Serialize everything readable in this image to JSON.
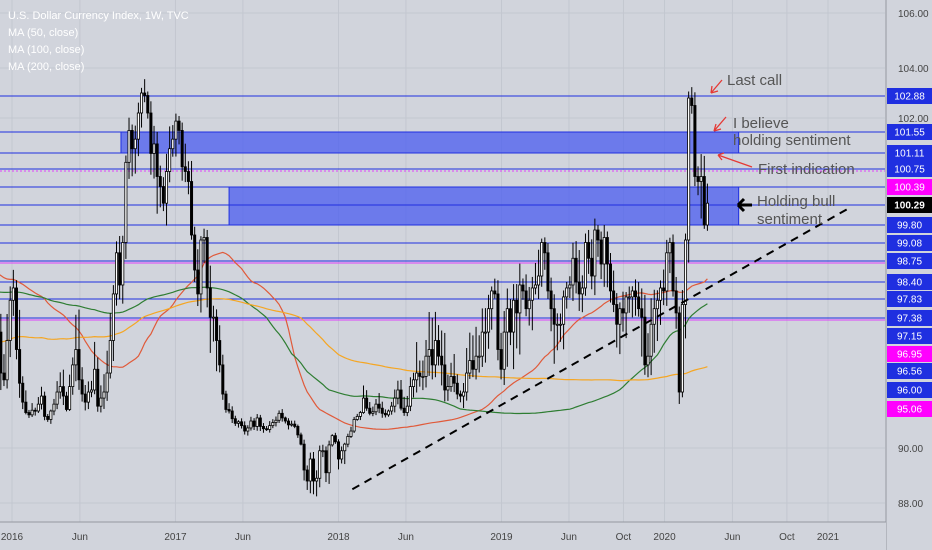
{
  "legend": {
    "symbol": "U.S. Dollar Currency Index, 1W, TVC",
    "ma1": "MA (50, close)",
    "ma2": "MA (100, close)",
    "ma3": "MA (200, close)"
  },
  "colors": {
    "background": "#d1d4dc",
    "zone_fill": "#4a5cf0",
    "level_line": "#1f2fe0",
    "magenta_line": "#e040fb",
    "candle": "#000000",
    "ma50": "#e05a3a",
    "ma100": "#2e7d32",
    "ma200": "#f5a623",
    "annotation_arrow": "#e53935",
    "annotation_text": "#555555",
    "trendline": "#000000",
    "current_price_bg": "#000000",
    "magenta_label_bg": "#ff00ff"
  },
  "chart_data": {
    "type": "candlestick",
    "title": "U.S. Dollar Currency Index, 1W, TVC",
    "x_tick_labels": [
      {
        "label": "2016",
        "date": "2016-01-01"
      },
      {
        "label": "Jun",
        "date": "2016-06-01"
      },
      {
        "label": "2017",
        "date": "2017-01-01"
      },
      {
        "label": "Jun",
        "date": "2017-06-01"
      },
      {
        "label": "2018",
        "date": "2018-01-01"
      },
      {
        "label": "Jun",
        "date": "2018-06-01"
      },
      {
        "label": "2019",
        "date": "2019-01-01"
      },
      {
        "label": "Jun",
        "date": "2019-06-01"
      },
      {
        "label": "Oct",
        "date": "2019-10-01"
      },
      {
        "label": "2020",
        "date": "2020-01-01"
      },
      {
        "label": "Jun",
        "date": "2020-06-01"
      },
      {
        "label": "Oct",
        "date": "2020-10-01"
      },
      {
        "label": "2021",
        "date": "2021-01-01"
      }
    ],
    "y_tick_labels": [
      106.0,
      104.0,
      102.0,
      90.0,
      88.0
    ],
    "price_labels": [
      {
        "text": "102.88",
        "kind": "blue"
      },
      {
        "text": "101.55",
        "kind": "blue"
      },
      {
        "text": "101.11",
        "kind": "blue"
      },
      {
        "text": "100.75",
        "kind": "blue"
      },
      {
        "text": "100.39",
        "kind": "magenta"
      },
      {
        "text": "100.29",
        "kind": "current"
      },
      {
        "text": "99.80",
        "kind": "blue"
      },
      {
        "text": "99.08",
        "kind": "blue"
      },
      {
        "text": "98.75",
        "kind": "blue"
      },
      {
        "text": "98.40",
        "kind": "blue"
      },
      {
        "text": "97.83",
        "kind": "blue"
      },
      {
        "text": "97.38",
        "kind": "blue"
      },
      {
        "text": "97.15",
        "kind": "blue"
      },
      {
        "text": "96.95",
        "kind": "magenta"
      },
      {
        "text": "96.56",
        "kind": "blue"
      },
      {
        "text": "96.00",
        "kind": "blue"
      },
      {
        "text": "95.06",
        "kind": "magenta"
      }
    ],
    "horizontal_levels": [
      102.88,
      101.55,
      101.11,
      100.75,
      100.39,
      100.29,
      99.8,
      99.08,
      98.75,
      98.4,
      97.83,
      97.38
    ],
    "magenta_levels": [
      100.75,
      98.75,
      97.38
    ],
    "zones": [
      {
        "from": "2016-09-01",
        "to": "2020-06-15",
        "low": 101.11,
        "high": 101.55
      },
      {
        "from": "2017-05-01",
        "to": "2020-06-15",
        "low": 99.8,
        "high": 100.39
      }
    ],
    "weekly_closes": [
      98.5,
      98.9,
      99.4,
      98.7,
      97.2,
      96.5,
      96.3,
      97.1,
      97.8,
      98.2,
      97.0,
      96.2,
      95.4,
      94.6,
      94.3,
      94.9,
      94.8,
      95.3,
      95.7,
      94.1,
      93.7,
      94.8,
      95.3,
      95.9,
      96.1,
      95.7,
      95.0,
      96.1,
      96.7,
      97.0,
      96.3,
      95.8,
      95.4,
      95.9,
      96.0,
      96.6,
      95.2,
      95.6,
      95.9,
      96.5,
      97.1,
      98.0,
      98.9,
      98.3,
      99.1,
      100.9,
      101.6,
      101.2,
      101.4,
      102.2,
      103.0,
      102.9,
      102.2,
      101.1,
      101.3,
      100.6,
      100.4,
      100.3,
      100.7,
      101.2,
      101.4,
      101.9,
      101.6,
      100.8,
      100.7,
      100.5,
      99.4,
      98.6,
      98.0,
      99.2,
      99.3,
      98.2,
      97.4,
      97.4,
      97.1,
      96.7,
      95.8,
      95.0,
      94.8,
      93.8,
      93.2,
      93.4,
      92.9,
      92.2,
      92.6,
      93.5,
      92.8,
      93.9,
      92.8,
      92.5,
      92.4,
      92.9,
      93.3,
      93.6,
      94.5,
      93.9,
      93.5,
      93.0,
      93.1,
      92.8,
      91.7,
      90.5,
      89.2,
      88.8,
      89.6,
      88.8,
      88.9,
      89.9,
      89.9,
      89.1,
      90.4,
      91.6,
      90.8,
      89.6,
      89.9,
      90.5,
      91.5,
      92.2,
      93.7,
      94.1,
      94.6,
      95.6,
      95.1,
      94.5,
      94.7,
      95.3,
      95.1,
      94.5,
      94.3,
      94.8,
      95.2,
      95.6,
      96.0,
      95.1,
      94.6,
      95.2,
      96.1,
      96.3,
      96.5,
      96.4,
      96.4,
      96.9,
      97.0,
      96.7,
      97.1,
      96.9,
      96.7,
      96.0,
      96.1,
      96.4,
      96.2,
      95.8,
      95.7,
      95.9,
      96.5,
      96.8,
      96.6,
      96.9,
      96.9,
      97.2,
      97.2,
      97.6,
      98.1,
      98.0,
      97.0,
      96.6,
      97.2,
      97.6,
      97.2,
      97.8,
      97.5,
      98.3,
      98.1,
      97.6,
      97.8,
      98.2,
      98.3,
      98.5,
      99.1,
      98.9,
      98.1,
      97.6,
      97.3,
      97.3,
      97.3,
      97.9,
      98.2,
      98.3,
      98.8,
      98.4,
      98.0,
      98.2,
      99.1,
      98.8,
      98.5,
      99.6,
      99.2,
      98.7,
      99.3,
      98.7,
      98.1,
      97.7,
      97.3,
      97.6,
      97.5,
      97.9,
      97.9,
      98.1,
      97.9,
      97.6,
      97.4,
      96.7,
      96.9,
      97.3,
      97.6,
      97.8,
      98.2,
      98.1,
      98.9,
      99.1,
      98.1,
      97.5,
      95.9,
      97.7,
      99.2,
      102.8,
      102.5,
      100.6,
      100.5,
      100.6,
      99.8,
      100.3
    ],
    "ma_series": [
      {
        "name": "MA (50, close)",
        "period": 50
      },
      {
        "name": "MA (100, close)",
        "period": 100
      },
      {
        "name": "MA (200, close)",
        "period": 200
      }
    ],
    "trendline": {
      "from": {
        "date": "2018-02-01",
        "value": 88.5
      },
      "to": {
        "date": "2021-02-15",
        "value": 100.2
      }
    },
    "annotations": [
      {
        "text": "Last call"
      },
      {
        "text": "I believe"
      },
      {
        "text": "holding sentiment"
      },
      {
        "text": "First indication"
      },
      {
        "text": "Holding bull"
      },
      {
        "text": "sentiment"
      }
    ],
    "xlabel": "",
    "ylabel": "",
    "grid": true
  }
}
